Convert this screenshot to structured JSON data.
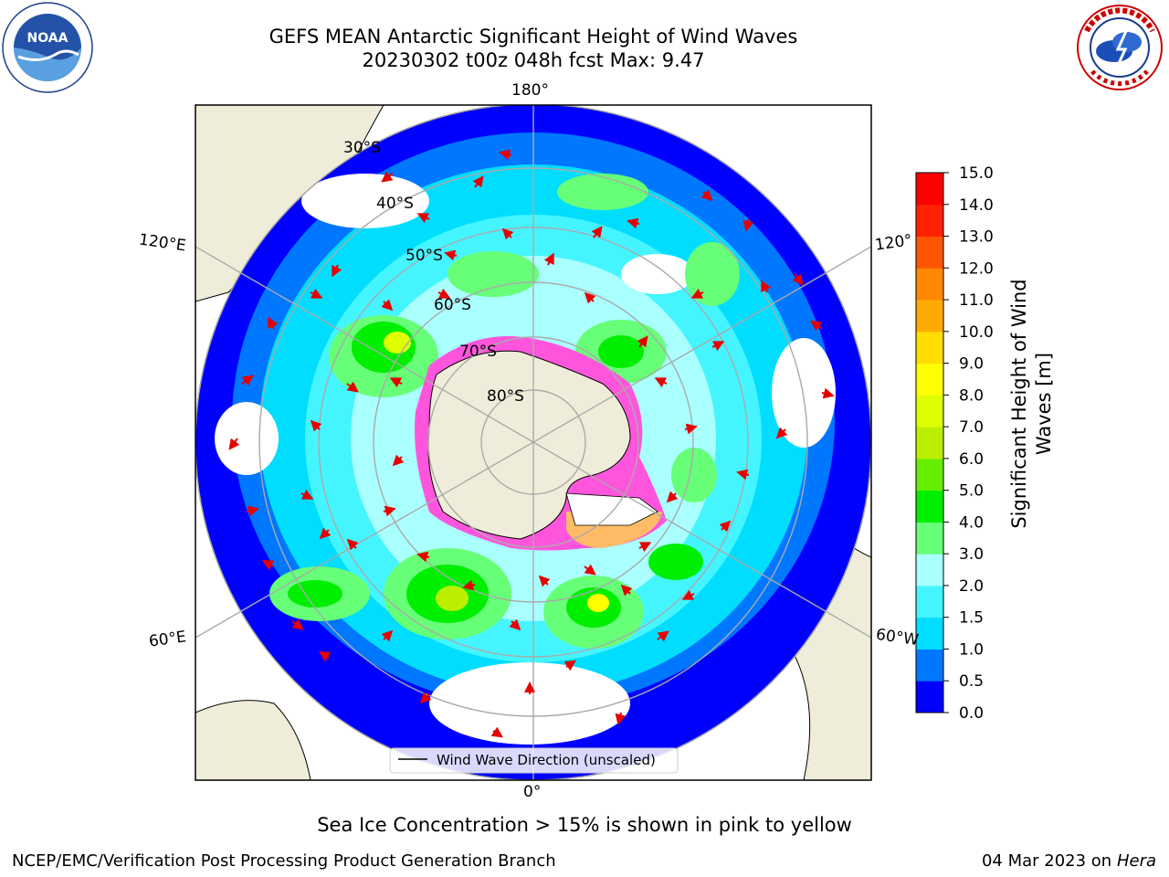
{
  "title": {
    "line1": "GEFS MEAN Antarctic Significant Height of Wind Waves",
    "line2": "20230302 t00z 048h fcst   Max: 9.47"
  },
  "map": {
    "longitude_labels": {
      "top": "180°",
      "bottom": "0°",
      "upper_left": "120°E",
      "upper_right": "120°",
      "lower_left": "60°E",
      "lower_right": "60°W"
    },
    "latitude_labels": [
      "30°S",
      "40°S",
      "50°S",
      "60°S",
      "70°S",
      "80°S"
    ],
    "legend_label": "Wind Wave Direction (unscaled)",
    "ice_color": "#ff55dd",
    "land_color": "#efedd9",
    "arrow_color": "#e60000"
  },
  "colorbar": {
    "label_line1": "Significant Height of Wind",
    "label_line2": "Waves [m]",
    "ticks": [
      "0.0",
      "0.5",
      "1.0",
      "1.5",
      "2.0",
      "3.0",
      "4.0",
      "5.0",
      "6.0",
      "7.0",
      "8.0",
      "9.0",
      "10.0",
      "11.0",
      "12.0",
      "13.0",
      "14.0",
      "15.0"
    ],
    "colors": [
      "#0000ff",
      "#0077ff",
      "#00ddff",
      "#44f5ff",
      "#aaffff",
      "#66ff77",
      "#00ee00",
      "#66ee00",
      "#bbee00",
      "#ddff00",
      "#ffff00",
      "#ffdd00",
      "#ffaa00",
      "#ff8800",
      "#ff5500",
      "#ff2200",
      "#ff0000"
    ]
  },
  "footer": {
    "note": "Sea Ice Concentration > 15% is shown in pink to yellow",
    "left": "NCEP/EMC/Verification Post Processing Product Generation Branch",
    "right_date": "04 Mar 2023 on",
    "right_host": "Hera"
  },
  "logos": {
    "noaa": "NOAA",
    "noaa_ring_text": "NATIONAL OCEANIC AND ATMOSPHERIC ADMINISTRATION · U.S. DEPARTMENT OF COMMERCE",
    "nws_ring_text": "NATIONAL WEATHER SERVICE"
  }
}
